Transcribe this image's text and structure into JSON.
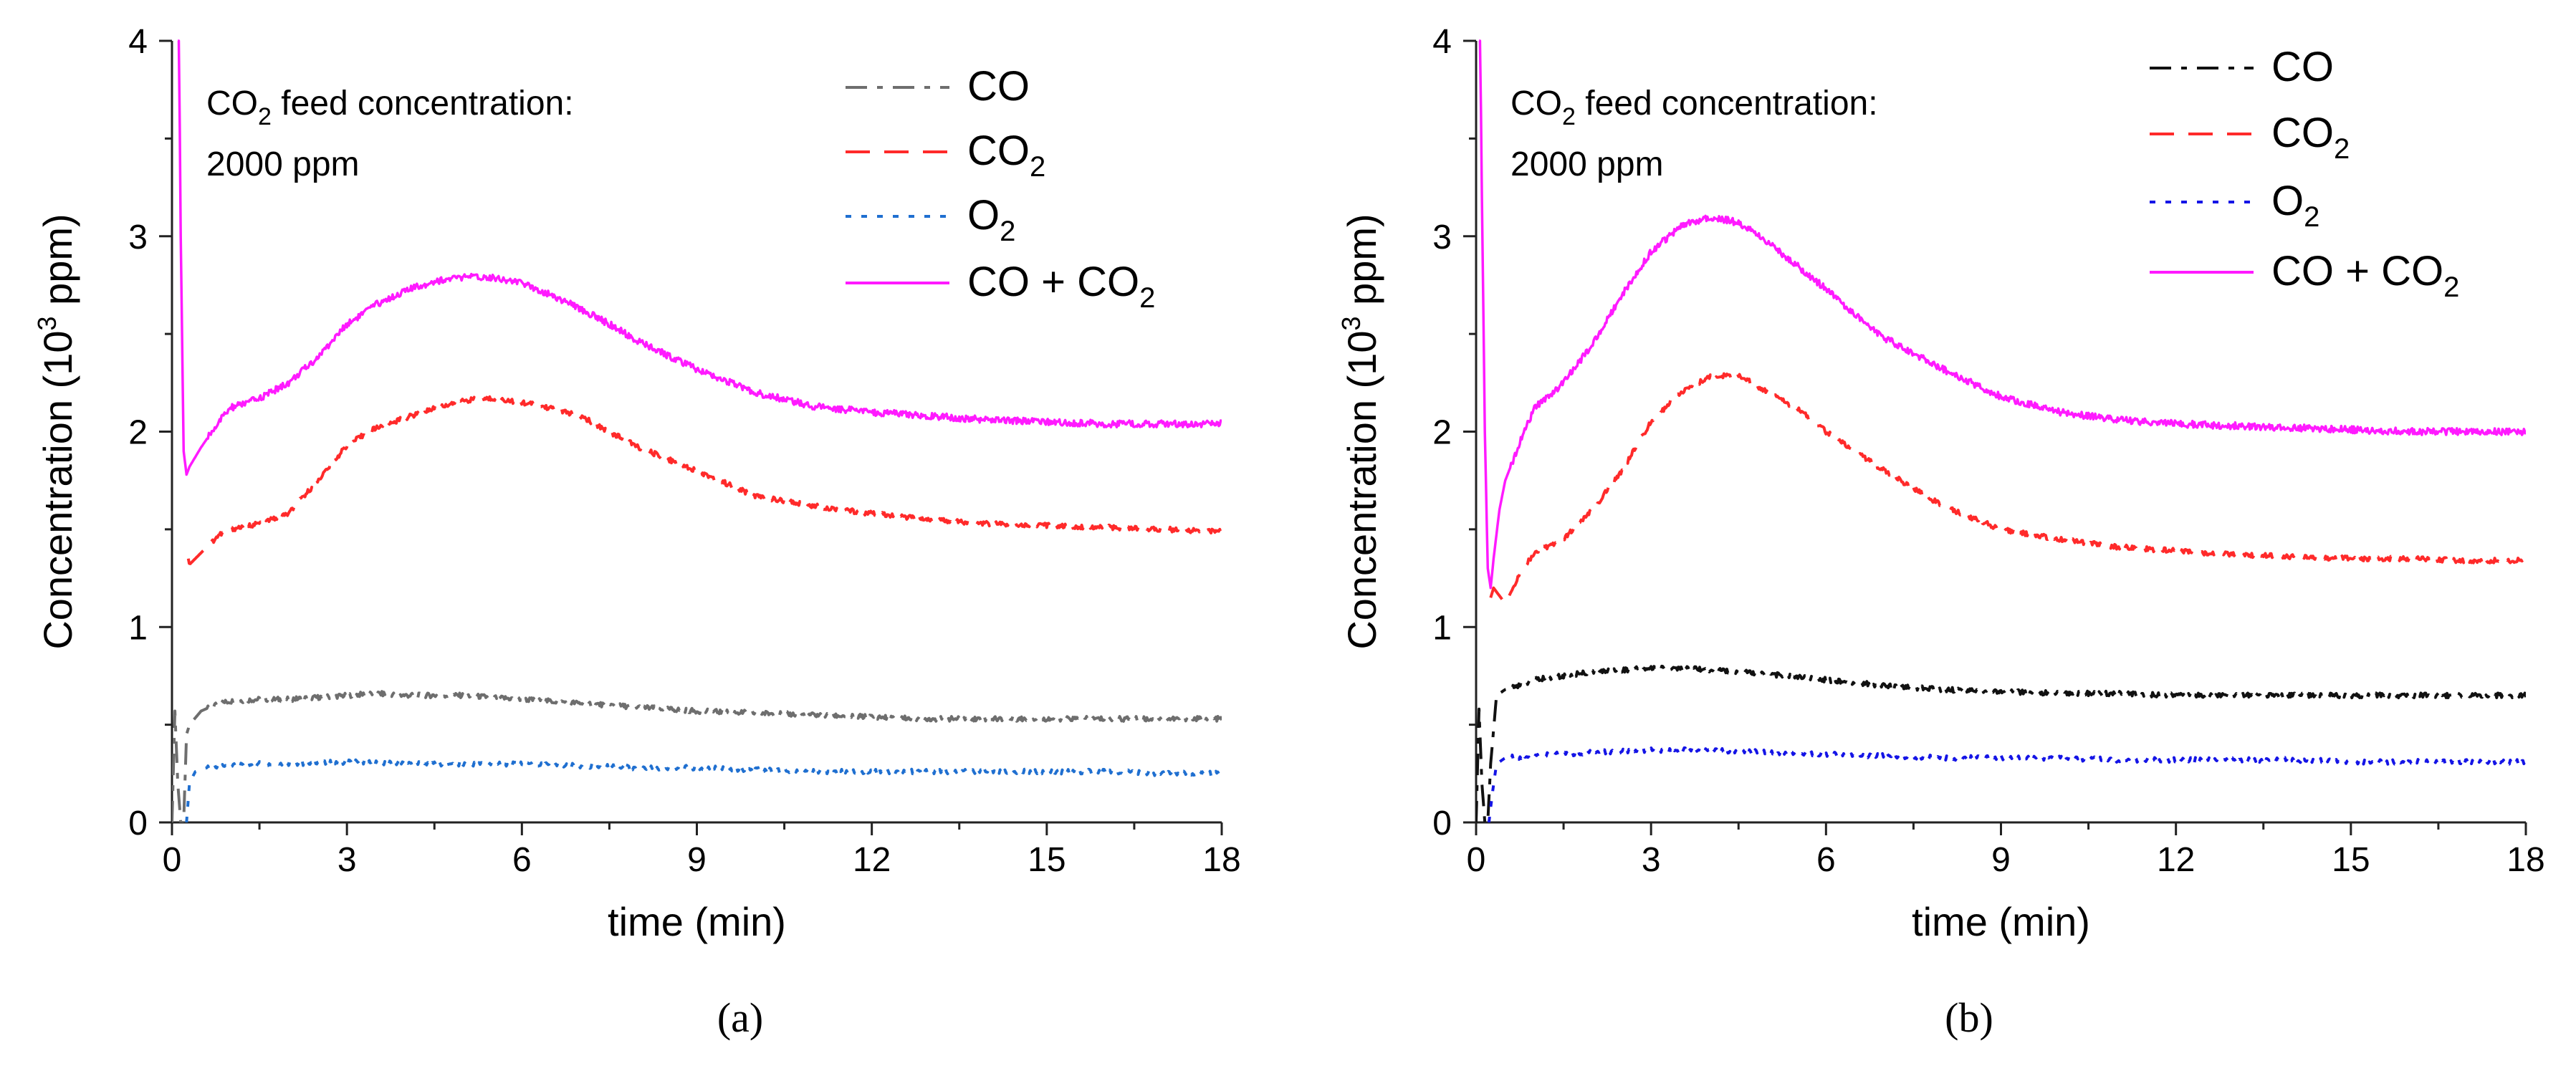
{
  "chart_data": [
    {
      "type": "line",
      "panel_caption": "(a)",
      "title": "",
      "xlabel": "time (min)",
      "ylabel_main": "Concentration (10",
      "ylabel_sup": "3",
      "ylabel_tail": " ppm)",
      "xlim": [
        0,
        18
      ],
      "ylim": [
        0,
        4
      ],
      "xticks": [
        0,
        3,
        6,
        9,
        12,
        15,
        18
      ],
      "xtick_labels": [
        "0",
        "3",
        "6",
        "9",
        "12",
        "15",
        "18"
      ],
      "yticks": [
        0,
        1,
        2,
        3,
        4
      ],
      "ytick_labels": [
        "0",
        "1",
        "2",
        "3",
        "4"
      ],
      "grid": false,
      "legend_position": "top-right",
      "annotation": {
        "line1_prefix": "CO",
        "line1_sub": "2",
        "line1_suffix": " feed concentration:",
        "line2": "2000 ppm"
      },
      "series": [
        {
          "name": "CO",
          "legend_base": "CO",
          "legend_sub": "",
          "legend_tail": "",
          "color": "#6e6e6e",
          "dash": "dashdot",
          "x": [
            0,
            0.05,
            0.1,
            0.15,
            0.2,
            0.25,
            0.3,
            0.5,
            0.8,
            1,
            1.5,
            2,
            2.5,
            3,
            3.5,
            4,
            5,
            6,
            7,
            8,
            9,
            10,
            11,
            12,
            13,
            14,
            15,
            16,
            17,
            18
          ],
          "y": [
            0,
            0.57,
            0.2,
            0,
            0,
            0.45,
            0.5,
            0.57,
            0.61,
            0.62,
            0.63,
            0.63,
            0.64,
            0.65,
            0.66,
            0.65,
            0.65,
            0.63,
            0.61,
            0.59,
            0.57,
            0.56,
            0.55,
            0.54,
            0.53,
            0.53,
            0.53,
            0.53,
            0.53,
            0.53
          ]
        },
        {
          "name": "CO2",
          "legend_base": "CO",
          "legend_sub": "2",
          "legend_tail": "",
          "color": "#ff2a2a",
          "dash": "dashed",
          "x": [
            0.28,
            0.3,
            0.5,
            0.8,
            1,
            1.5,
            2,
            2.5,
            3,
            3.5,
            4,
            4.5,
            5,
            5.5,
            6,
            6.5,
            7,
            8,
            9,
            10,
            11,
            12,
            13,
            14,
            15,
            16,
            17,
            18
          ],
          "y": [
            1.35,
            1.32,
            1.38,
            1.47,
            1.5,
            1.53,
            1.58,
            1.75,
            1.93,
            2.02,
            2.07,
            2.12,
            2.16,
            2.17,
            2.15,
            2.12,
            2.08,
            1.92,
            1.8,
            1.67,
            1.62,
            1.58,
            1.55,
            1.53,
            1.52,
            1.51,
            1.5,
            1.49
          ]
        },
        {
          "name": "O2",
          "legend_base": "O",
          "legend_sub": "2",
          "legend_tail": "",
          "color": "#1f6fd0",
          "dash": "dotted",
          "x": [
            0.25,
            0.3,
            0.4,
            0.6,
            1,
            1.5,
            2,
            3,
            4,
            5,
            6,
            7,
            8,
            9,
            10,
            11,
            12,
            13,
            14,
            15,
            16,
            17,
            18
          ],
          "y": [
            0,
            0.2,
            0.26,
            0.28,
            0.29,
            0.3,
            0.3,
            0.31,
            0.3,
            0.3,
            0.3,
            0.29,
            0.28,
            0.28,
            0.27,
            0.26,
            0.26,
            0.26,
            0.26,
            0.26,
            0.26,
            0.25,
            0.25
          ]
        },
        {
          "name": "CO + CO2",
          "legend_base": "CO + CO",
          "legend_sub": "2",
          "legend_tail": "",
          "color": "#ff1aff",
          "dash": "solid",
          "x": [
            0.1,
            0.12,
            0.15,
            0.2,
            0.25,
            0.3,
            0.5,
            0.8,
            1,
            1.5,
            2,
            2.5,
            3,
            3.5,
            4,
            4.5,
            5,
            5.5,
            6,
            6.5,
            7,
            7.5,
            8,
            9,
            10,
            11,
            12,
            13,
            14,
            15,
            16,
            17,
            18
          ],
          "y": [
            4.0,
            4.0,
            3.0,
            1.9,
            1.78,
            1.82,
            1.92,
            2.05,
            2.12,
            2.17,
            2.25,
            2.38,
            2.55,
            2.65,
            2.72,
            2.77,
            2.79,
            2.79,
            2.76,
            2.7,
            2.63,
            2.55,
            2.46,
            2.32,
            2.2,
            2.13,
            2.1,
            2.08,
            2.06,
            2.05,
            2.04,
            2.04,
            2.04
          ]
        }
      ]
    },
    {
      "type": "line",
      "panel_caption": "(b)",
      "title": "",
      "xlabel": "time (min)",
      "ylabel_main": "Concentration (10",
      "ylabel_sup": "3",
      "ylabel_tail": " ppm)",
      "xlim": [
        0,
        18
      ],
      "ylim": [
        0,
        4
      ],
      "xticks": [
        0,
        3,
        6,
        9,
        12,
        15,
        18
      ],
      "xtick_labels": [
        "0",
        "3",
        "6",
        "9",
        "12",
        "15",
        "18"
      ],
      "yticks": [
        0,
        1,
        2,
        3,
        4
      ],
      "ytick_labels": [
        "0",
        "1",
        "2",
        "3",
        "4"
      ],
      "grid": false,
      "legend_position": "top-right",
      "annotation": {
        "line1_prefix": "CO",
        "line1_sub": "2",
        "line1_suffix": " feed concentration:",
        "line2": "2000 ppm"
      },
      "series": [
        {
          "name": "CO",
          "legend_base": "CO",
          "legend_sub": "",
          "legend_tail": "",
          "color": "#111111",
          "dash": "dashdot",
          "x": [
            0,
            0.05,
            0.1,
            0.15,
            0.2,
            0.25,
            0.35,
            0.5,
            0.8,
            1,
            1.5,
            2,
            2.5,
            3,
            3.5,
            4,
            5,
            6,
            7,
            8,
            9,
            10,
            11,
            12,
            13,
            14,
            15,
            16,
            17,
            18
          ],
          "y": [
            0,
            0.58,
            0.2,
            0,
            0,
            0.3,
            0.65,
            0.68,
            0.71,
            0.73,
            0.75,
            0.77,
            0.78,
            0.79,
            0.79,
            0.78,
            0.76,
            0.73,
            0.7,
            0.68,
            0.67,
            0.66,
            0.66,
            0.65,
            0.65,
            0.65,
            0.65,
            0.65,
            0.65,
            0.65
          ]
        },
        {
          "name": "CO2",
          "legend_base": "CO",
          "legend_sub": "2",
          "legend_tail": "",
          "color": "#ff2a2a",
          "dash": "dashed",
          "x": [
            0.25,
            0.3,
            0.5,
            0.8,
            1,
            1.5,
            2,
            2.5,
            3,
            3.5,
            4,
            4.5,
            5,
            5.5,
            6,
            6.5,
            7,
            8,
            9,
            10,
            11,
            12,
            13,
            14,
            15,
            16,
            17,
            18
          ],
          "y": [
            1.15,
            1.2,
            1.12,
            1.3,
            1.38,
            1.45,
            1.6,
            1.8,
            2.05,
            2.2,
            2.28,
            2.29,
            2.2,
            2.12,
            2.0,
            1.9,
            1.8,
            1.62,
            1.5,
            1.45,
            1.41,
            1.39,
            1.37,
            1.36,
            1.35,
            1.35,
            1.34,
            1.34
          ]
        },
        {
          "name": "O2",
          "legend_base": "O",
          "legend_sub": "2",
          "legend_tail": "",
          "color": "#1414e6",
          "dash": "dotted",
          "x": [
            0.22,
            0.28,
            0.35,
            0.5,
            1,
            1.5,
            2,
            3,
            4,
            5,
            6,
            7,
            8,
            9,
            10,
            11,
            12,
            13,
            14,
            15,
            16,
            17,
            18
          ],
          "y": [
            0,
            0.15,
            0.3,
            0.33,
            0.34,
            0.35,
            0.36,
            0.37,
            0.37,
            0.36,
            0.35,
            0.34,
            0.33,
            0.33,
            0.33,
            0.32,
            0.32,
            0.32,
            0.32,
            0.31,
            0.31,
            0.31,
            0.31
          ]
        },
        {
          "name": "CO + CO2",
          "legend_base": "CO + CO",
          "legend_sub": "2",
          "legend_tail": "",
          "color": "#ff1aff",
          "dash": "solid",
          "x": [
            0.05,
            0.07,
            0.1,
            0.15,
            0.2,
            0.25,
            0.3,
            0.4,
            0.5,
            0.8,
            1,
            1.5,
            2,
            2.5,
            3,
            3.5,
            4,
            4.5,
            5,
            5.5,
            6,
            6.5,
            7,
            8,
            9,
            10,
            11,
            12,
            13,
            14,
            15,
            16,
            17,
            18
          ],
          "y": [
            4.0,
            4.0,
            3.2,
            2.0,
            1.3,
            1.2,
            1.35,
            1.6,
            1.75,
            1.98,
            2.12,
            2.25,
            2.45,
            2.7,
            2.92,
            3.05,
            3.1,
            3.07,
            2.97,
            2.85,
            2.73,
            2.6,
            2.48,
            2.32,
            2.18,
            2.1,
            2.06,
            2.04,
            2.03,
            2.02,
            2.01,
            2.0,
            2.0,
            2.0
          ]
        }
      ]
    }
  ]
}
